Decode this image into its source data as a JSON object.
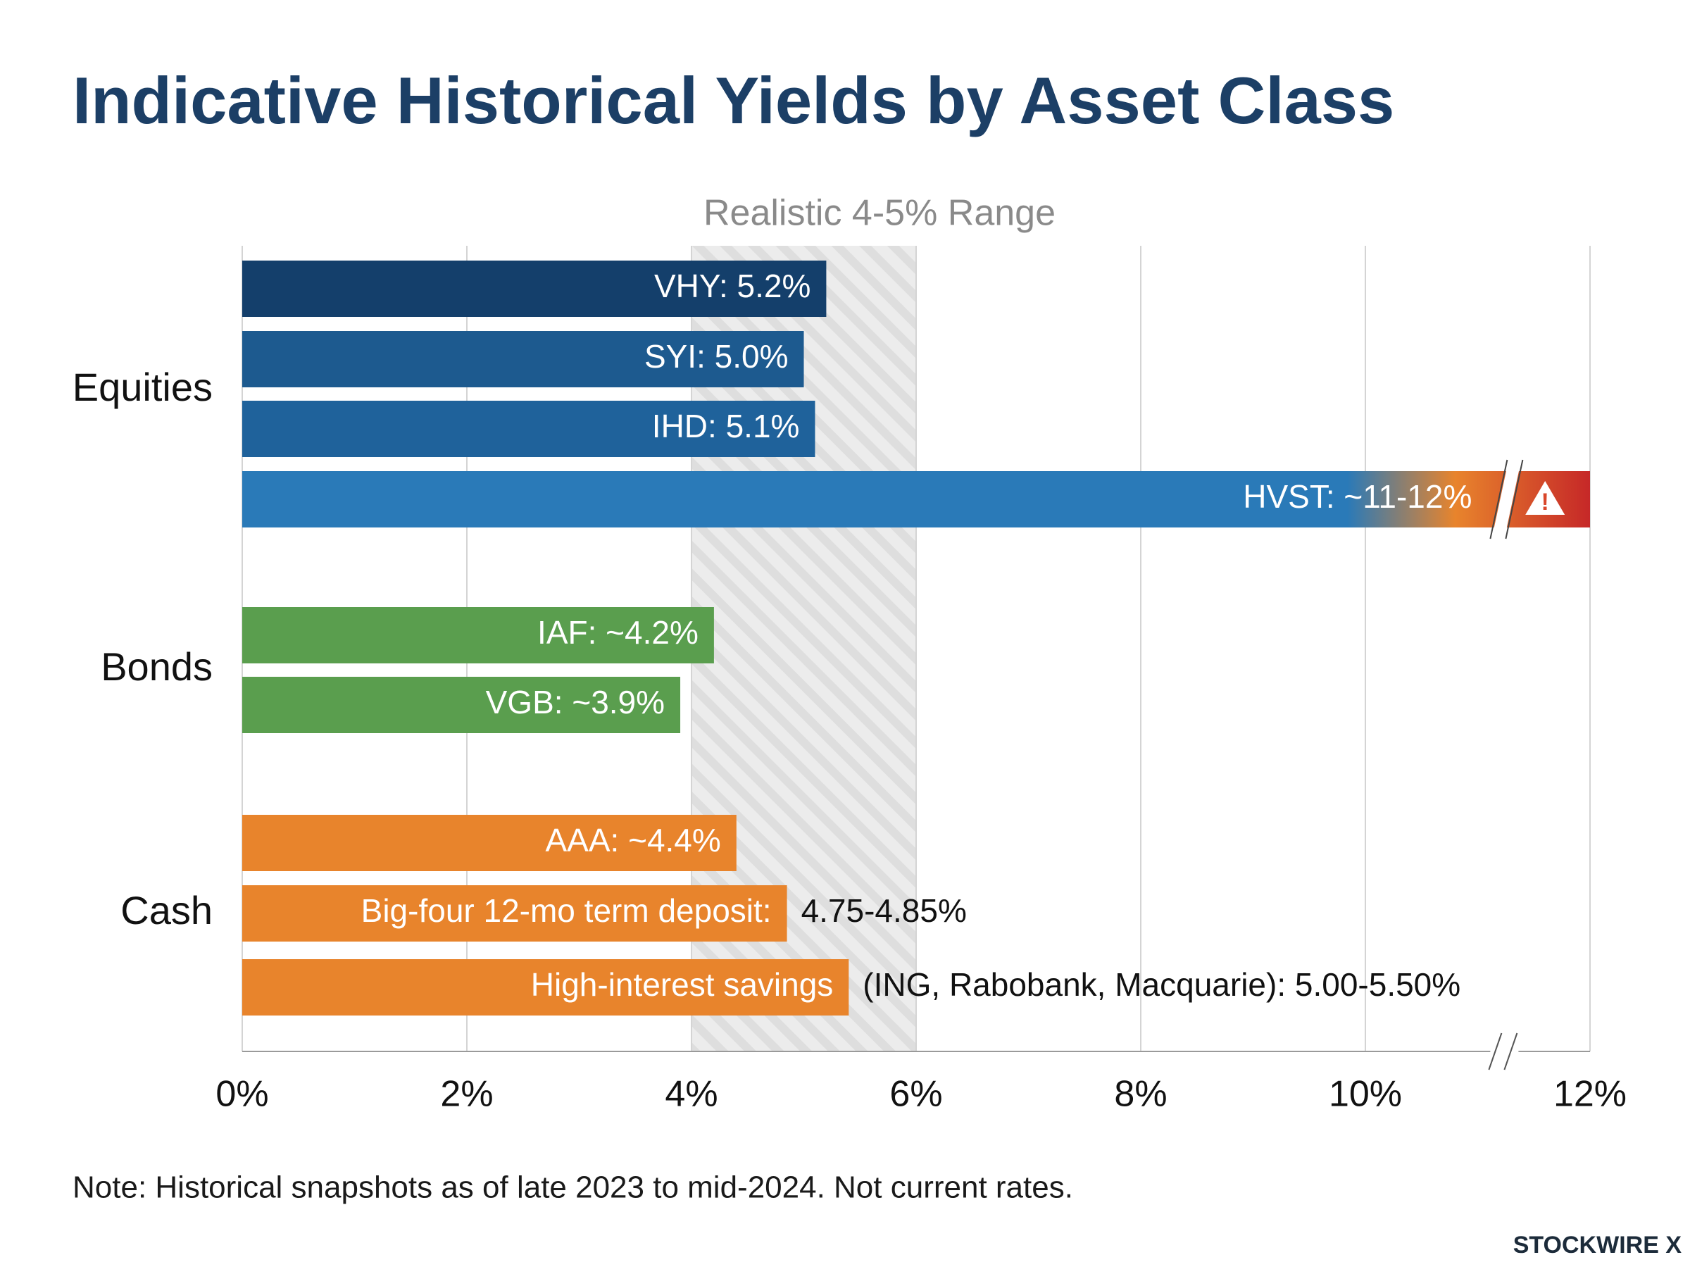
{
  "chart_data": {
    "type": "bar",
    "orientation": "horizontal",
    "title": "Indicative Historical Yields by Asset Class",
    "annotation": "Realistic 4-5% Range",
    "highlight_range": [
      4,
      6
    ],
    "xlim": [
      0,
      12
    ],
    "xticks": [
      {
        "value": 0,
        "label": "0%"
      },
      {
        "value": 2,
        "label": "2%"
      },
      {
        "value": 4,
        "label": "4%"
      },
      {
        "value": 6,
        "label": "6%"
      },
      {
        "value": 8,
        "label": "8%"
      },
      {
        "value": 10,
        "label": "10%"
      },
      {
        "value": 12,
        "label": "12%"
      }
    ],
    "grid": true,
    "groups": [
      {
        "name": "Equities",
        "bars": [
          {
            "label": "VHY: 5.2%",
            "value": 5.2,
            "color": "#143f6b"
          },
          {
            "label": "SYI: 5.0%",
            "value": 5.0,
            "color": "#1d5a8f"
          },
          {
            "label": "IHD: 5.1%",
            "value": 5.1,
            "color": "#1f629b"
          },
          {
            "label": "HVST: ~11-12%",
            "value": 12,
            "color": "#2a7ab8"
          }
        ]
      },
      {
        "name": "Bonds",
        "bars": [
          {
            "label": "IAF: ~4.2%",
            "value": 4.2,
            "color": "#5a9e4e"
          },
          {
            "label": "VGB: ~3.9%",
            "value": 3.9,
            "color": "#5a9e4e"
          }
        ]
      },
      {
        "name": "Cash",
        "bars": [
          {
            "label": "AAA: ~4.4%",
            "value": 4.4,
            "color": "#e8842c"
          },
          {
            "label": "Big-four 12-mo term deposit:",
            "value": 4.85,
            "value_label": "4.75-4.85%",
            "color": "#e8842c"
          },
          {
            "label": "High-interest savings",
            "value": 5.4,
            "value_label": "(ING, Rabobank, Macquarie): 5.00-5.50%",
            "color": "#e8842c"
          }
        ]
      }
    ],
    "note": "Note: Historical snapshots as of late 2023 to mid-2024. Not current rates.",
    "brand": "STOCKWIRE X"
  }
}
